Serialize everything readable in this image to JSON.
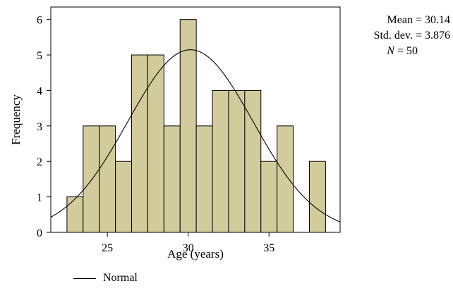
{
  "chart_data": {
    "type": "histogram",
    "xlabel": "Age (years)",
    "ylabel": "Frequency",
    "xlim": [
      21.5,
      39.4
    ],
    "ylim": [
      0,
      6.35
    ],
    "x_ticks": [
      25,
      30,
      35
    ],
    "y_ticks": [
      0,
      1,
      2,
      3,
      4,
      5,
      6
    ],
    "bin_width": 1,
    "bins": [
      {
        "start": 22.5,
        "end": 23.5,
        "count": 1
      },
      {
        "start": 23.5,
        "end": 24.5,
        "count": 3
      },
      {
        "start": 24.5,
        "end": 25.5,
        "count": 3
      },
      {
        "start": 25.5,
        "end": 26.5,
        "count": 2
      },
      {
        "start": 26.5,
        "end": 27.5,
        "count": 5
      },
      {
        "start": 27.5,
        "end": 28.5,
        "count": 5
      },
      {
        "start": 28.5,
        "end": 29.5,
        "count": 3
      },
      {
        "start": 29.5,
        "end": 30.5,
        "count": 6
      },
      {
        "start": 30.5,
        "end": 31.5,
        "count": 3
      },
      {
        "start": 31.5,
        "end": 32.5,
        "count": 4
      },
      {
        "start": 32.5,
        "end": 33.5,
        "count": 4
      },
      {
        "start": 33.5,
        "end": 34.5,
        "count": 4
      },
      {
        "start": 34.5,
        "end": 35.5,
        "count": 2
      },
      {
        "start": 35.5,
        "end": 36.5,
        "count": 3
      },
      {
        "start": 36.5,
        "end": 37.5,
        "count": 0
      },
      {
        "start": 37.5,
        "end": 38.5,
        "count": 2
      }
    ],
    "normal_curve": {
      "mean": 30.14,
      "sd": 3.876,
      "n": 50
    },
    "bar_color": "#d2cc9c",
    "bar_edge_color": "#000000",
    "legend": {
      "entries": [
        "Normal"
      ],
      "position": "bottom-left"
    },
    "grid": false
  },
  "stats": {
    "mean": "Mean = 30.14",
    "sd": "Std. dev. = 3.876",
    "n_var": "N",
    "n_rest": " = 50"
  },
  "legend": {
    "label": "Normal"
  }
}
